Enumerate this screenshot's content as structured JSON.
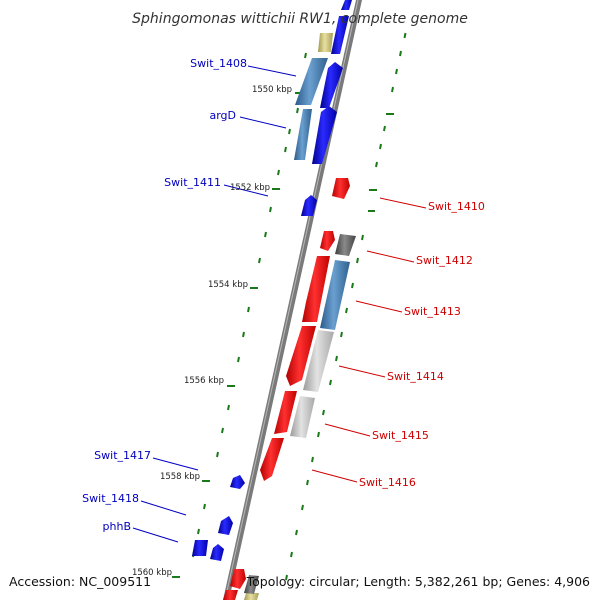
{
  "title": "Sphingomonas wittichii RW1, complete genome",
  "accession": "Accession: NC_009511",
  "topology": "Topology: circular; Length: 5,382,261 bp; Genes: 4,906",
  "colors": {
    "backbone": "#808080",
    "reverse_label": "#0000c0",
    "forward_label": "#d00000",
    "tick": "#1a7a1a"
  },
  "ticks": [
    {
      "label": "1550 kbp"
    },
    {
      "label": "1552 kbp"
    },
    {
      "label": "1554 kbp"
    },
    {
      "label": "1556 kbp"
    },
    {
      "label": "1558 kbp"
    },
    {
      "label": "1560 kbp"
    }
  ],
  "left_labels": [
    {
      "text": "Swit_1408"
    },
    {
      "text": "argD"
    },
    {
      "text": "Swit_1411"
    },
    {
      "text": "Swit_1417"
    },
    {
      "text": "Swit_1418"
    },
    {
      "text": "phhB"
    }
  ],
  "right_labels": [
    {
      "text": "Swit_1410"
    },
    {
      "text": "Swit_1412"
    },
    {
      "text": "Swit_1413"
    },
    {
      "text": "Swit_1414"
    },
    {
      "text": "Swit_1415"
    },
    {
      "text": "Swit_1416"
    }
  ]
}
